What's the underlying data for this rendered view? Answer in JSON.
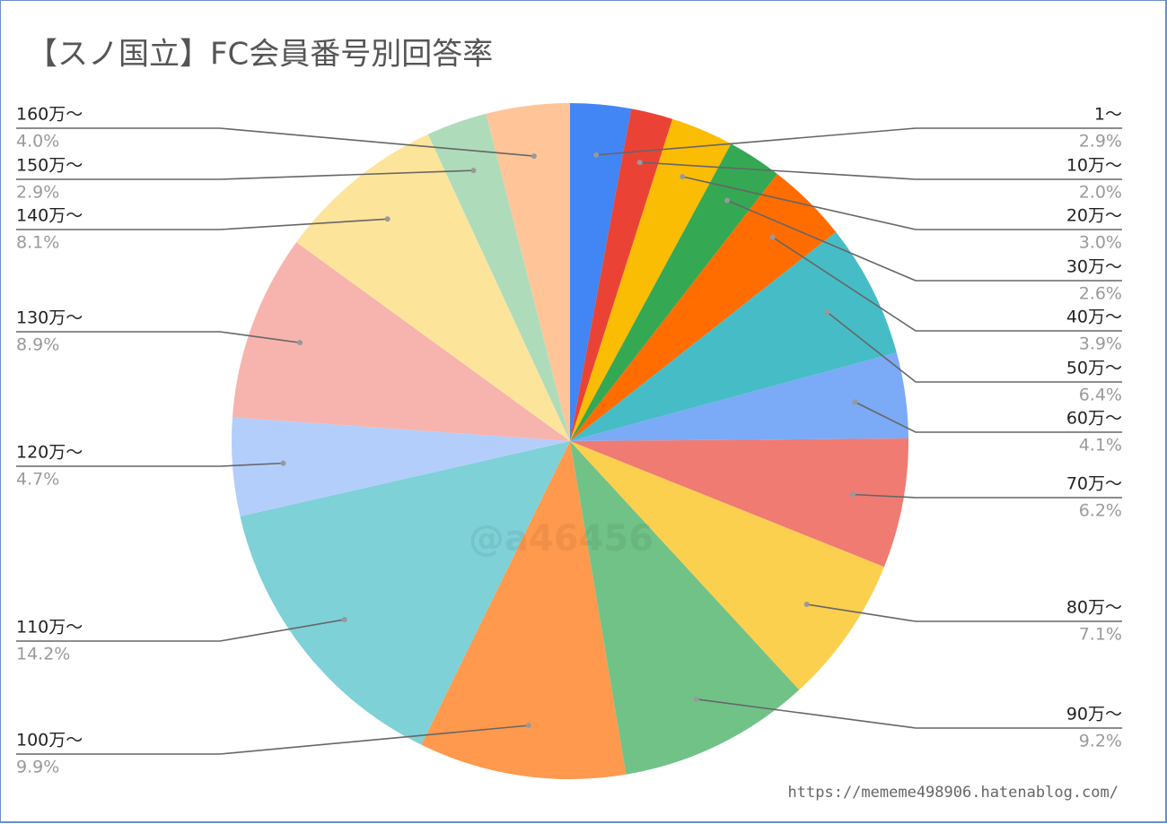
{
  "chart_data": {
    "type": "pie",
    "title": "【スノ国立】FC会員番号別回答率",
    "categories": [
      "1〜",
      "10万〜",
      "20万〜",
      "30万〜",
      "40万〜",
      "50万〜",
      "60万〜",
      "70万〜",
      "80万〜",
      "90万〜",
      "100万〜",
      "110万〜",
      "120万〜",
      "130万〜",
      "140万〜",
      "150万〜",
      "160万〜"
    ],
    "values": [
      2.9,
      2.0,
      3.0,
      2.6,
      3.9,
      6.4,
      4.1,
      6.2,
      7.1,
      9.2,
      9.9,
      14.2,
      4.7,
      8.9,
      8.1,
      2.9,
      4.0
    ],
    "value_labels": [
      "2.9%",
      "2.0%",
      "3.0%",
      "2.6%",
      "3.9%",
      "6.4%",
      "4.1%",
      "6.2%",
      "7.1%",
      "9.2%",
      "9.9%",
      "14.2%",
      "4.7%",
      "8.9%",
      "8.1%",
      "2.9%",
      "4.0%"
    ],
    "colors": [
      "#4285f4",
      "#ea4335",
      "#fbbc04",
      "#34a853",
      "#ff6d01",
      "#46bdc6",
      "#7baaf7",
      "#f07b72",
      "#fcd04f",
      "#71c287",
      "#ff994d",
      "#7ed1d7",
      "#b3cefb",
      "#f7b4ae",
      "#fde49b",
      "#aedcba",
      "#ffc599"
    ],
    "watermark": "@a46456",
    "source": "https://mememe498906.hatenablog.com/"
  }
}
